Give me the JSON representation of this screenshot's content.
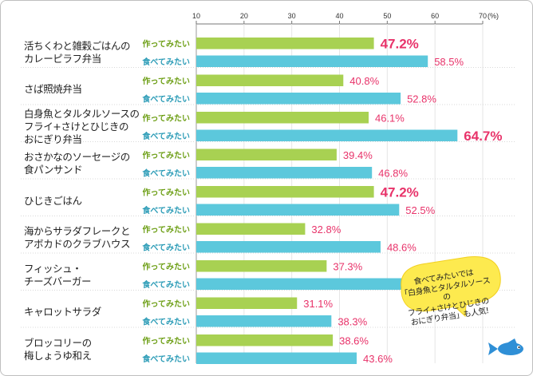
{
  "chart_data": {
    "type": "bar",
    "orientation": "horizontal",
    "x_ticks": [
      "10",
      "20",
      "30",
      "40",
      "50",
      "60",
      "70"
    ],
    "unit": "(%)",
    "xlim": [
      10,
      70
    ],
    "grid": true,
    "series": [
      {
        "name": "作ってみたい",
        "color": "#a8d152",
        "label_color": "#6c9e14"
      },
      {
        "name": "食べてみたい",
        "color": "#5cc8dc",
        "label_color": "#2a9bb6"
      }
    ],
    "categories": [
      {
        "name": "活ちくわと雑穀ごはんの\nカレーピラフ弁当",
        "values": [
          47.2,
          58.5
        ],
        "labels": [
          "47.2%",
          "58.5%"
        ],
        "highlight": [
          true,
          false
        ]
      },
      {
        "name": "さば照焼弁当",
        "values": [
          40.8,
          52.8
        ],
        "labels": [
          "40.8%",
          "52.8%"
        ],
        "highlight": [
          false,
          false
        ]
      },
      {
        "name": "白身魚とタルタルソースの\nフライ+さけとひじきの\nおにぎり弁当",
        "values": [
          46.1,
          64.7
        ],
        "labels": [
          "46.1%",
          "64.7%"
        ],
        "highlight": [
          false,
          true
        ]
      },
      {
        "name": "おさかなのソーセージの\n食パンサンド",
        "values": [
          39.4,
          46.8
        ],
        "labels": [
          "39.4%",
          "46.8%"
        ],
        "highlight": [
          false,
          false
        ]
      },
      {
        "name": "ひじきごはん",
        "values": [
          47.2,
          52.5
        ],
        "labels": [
          "47.2%",
          "52.5%"
        ],
        "highlight": [
          true,
          false
        ]
      },
      {
        "name": "海からサラダフレークと\nアボカドのクラブハウス",
        "values": [
          32.8,
          48.6
        ],
        "labels": [
          "32.8%",
          "48.6%"
        ],
        "highlight": [
          false,
          false
        ]
      },
      {
        "name": "フィッシュ・\nチーズバーガー",
        "values": [
          37.3,
          54.7
        ],
        "labels": [
          "37.3%",
          "54.7%"
        ],
        "highlight": [
          false,
          false
        ]
      },
      {
        "name": "キャロットサラダ",
        "values": [
          31.1,
          38.3
        ],
        "labels": [
          "31.1%",
          "38.3%"
        ],
        "highlight": [
          false,
          false
        ]
      },
      {
        "name": "ブロッコリーの\n梅しょうゆ和え",
        "values": [
          38.6,
          43.6
        ],
        "labels": [
          "38.6%",
          "43.6%"
        ],
        "highlight": [
          false,
          false
        ]
      }
    ],
    "value_label_color": "#e8336a",
    "annotation": "食べてみたいでは\n「白身魚とタルタルソースの\nフライ+さけとひじきの\nおにぎり弁当」も人気!"
  }
}
